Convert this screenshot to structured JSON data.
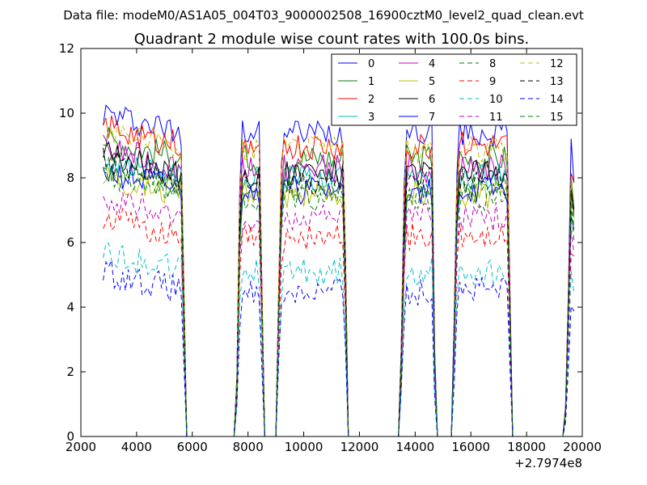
{
  "figure": {
    "suptitle": "Data file: modeM0/AS1A05_004T03_9000002508_16900cztM0_level2_quad_clean.evt"
  },
  "chart_data": {
    "type": "line",
    "title": "Quadrant 2 module wise count rates with 100.0s bins.",
    "xlabel": "",
    "ylabel": "",
    "x_offset_label": "+2.7974e8",
    "xlim": [
      2000,
      20000
    ],
    "ylim": [
      0,
      12
    ],
    "xticks": [
      2000,
      4000,
      6000,
      8000,
      10000,
      12000,
      14000,
      16000,
      18000,
      20000
    ],
    "yticks": [
      0,
      2,
      4,
      6,
      8,
      10,
      12
    ],
    "grid": false,
    "legend_location": "top-right",
    "legend_columns": 4,
    "envelope_x": [
      2800,
      5600,
      5700,
      5800,
      5900,
      7500,
      7600,
      7700,
      7800,
      8400,
      8500,
      8600,
      8700,
      9000,
      9100,
      9200,
      9300,
      11400,
      11500,
      11600,
      11700,
      13400,
      13500,
      13600,
      13700,
      14600,
      14700,
      14800,
      14900,
      15300,
      15400,
      15500,
      15600,
      17300,
      17400,
      17500,
      17600,
      19300,
      19400,
      19500,
      19600,
      19700
    ],
    "envelope_f": [
      1,
      1,
      0.5,
      0,
      0,
      0,
      0.2,
      0.8,
      1,
      1,
      0.5,
      0,
      0,
      0,
      0.5,
      0.9,
      1,
      1,
      0.6,
      0,
      0,
      0,
      0.3,
      0.8,
      1,
      1,
      0.3,
      0,
      0,
      0,
      0.4,
      0.9,
      1,
      1,
      0.5,
      0,
      0,
      0,
      0.1,
      0.5,
      0.95,
      0.85
    ],
    "series": [
      {
        "name": "0",
        "color": "#0000ff",
        "dashed": false,
        "level": 9.4
      },
      {
        "name": "1",
        "color": "#008000",
        "dashed": false,
        "level": 8.6
      },
      {
        "name": "2",
        "color": "#ff0000",
        "dashed": false,
        "level": 9.0
      },
      {
        "name": "3",
        "color": "#00bfbf",
        "dashed": false,
        "level": 8.0
      },
      {
        "name": "4",
        "color": "#bf00bf",
        "dashed": false,
        "level": 8.3
      },
      {
        "name": "5",
        "color": "#bfbf00",
        "dashed": false,
        "level": 7.5
      },
      {
        "name": "6",
        "color": "#000000",
        "dashed": false,
        "level": 8.1
      },
      {
        "name": "7",
        "color": "#0000ff",
        "dashed": false,
        "level": 7.6
      },
      {
        "name": "8",
        "color": "#008000",
        "dashed": true,
        "level": 7.4
      },
      {
        "name": "9",
        "color": "#ff0000",
        "dashed": true,
        "level": 6.2
      },
      {
        "name": "10",
        "color": "#00bfbf",
        "dashed": true,
        "level": 5.1
      },
      {
        "name": "11",
        "color": "#bf00bf",
        "dashed": true,
        "level": 6.8
      },
      {
        "name": "12",
        "color": "#bfbf00",
        "dashed": true,
        "level": 8.9
      },
      {
        "name": "13",
        "color": "#000000",
        "dashed": true,
        "level": 7.9
      },
      {
        "name": "14",
        "color": "#0000ff",
        "dashed": true,
        "level": 4.5
      },
      {
        "name": "15",
        "color": "#008000",
        "dashed": true,
        "level": 7.7
      }
    ]
  }
}
